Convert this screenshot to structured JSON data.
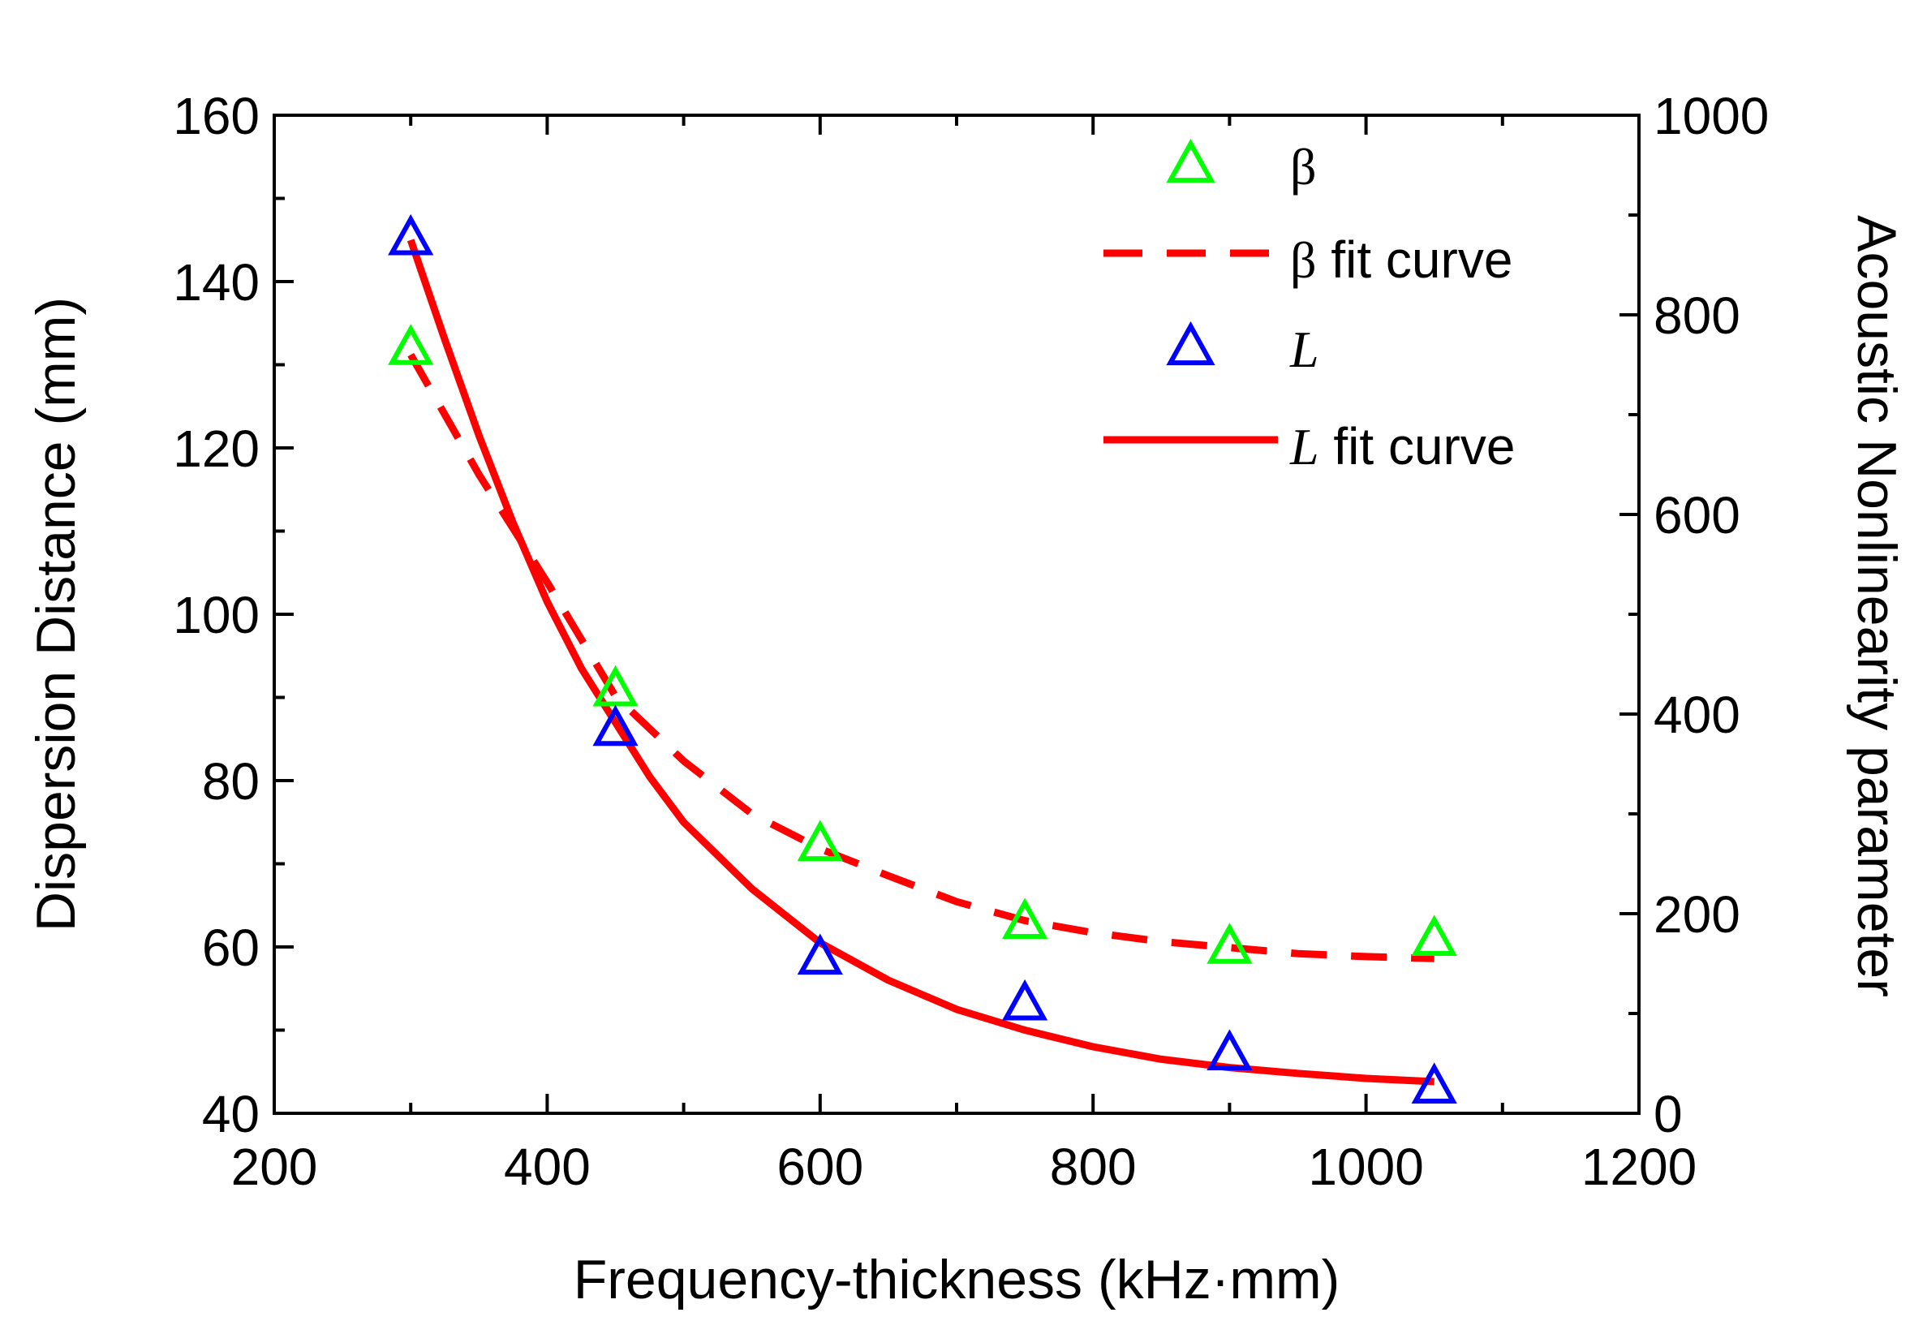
{
  "chart_data": {
    "type": "scatter",
    "title": "",
    "xlabel": "Frequency-thickness (kHz·mm)",
    "ylabel_left": "Dispersion Distance (mm)",
    "ylabel_right": "Acoustic Nonlinearity parameter",
    "xlim": [
      200,
      1200
    ],
    "ylim_left": [
      40,
      160
    ],
    "ylim_right": [
      0,
      1000
    ],
    "x_ticks": [
      200,
      400,
      600,
      800,
      1000,
      1200
    ],
    "y_left_ticks": [
      40,
      60,
      80,
      100,
      120,
      140,
      160
    ],
    "y_right_ticks": [
      0,
      200,
      400,
      600,
      800,
      1000
    ],
    "grid": false,
    "legend_position": "top-right",
    "series": [
      {
        "name": "β",
        "axis": "right",
        "style": "markers",
        "marker": "triangle-open",
        "color": "#00ff00",
        "x": [
          300,
          450,
          600,
          750,
          900,
          1050
        ],
        "y": [
          765,
          423,
          268,
          190,
          165,
          173
        ]
      },
      {
        "name": "β fit curve",
        "axis": "right",
        "style": "dashed-line",
        "color": "#ff0000",
        "x": [
          300,
          350,
          400,
          450,
          500,
          550,
          600,
          650,
          700,
          750,
          800,
          850,
          900,
          950,
          1000,
          1050
        ],
        "y": [
          760,
          640,
          532,
          418,
          353,
          300,
          265,
          238,
          212,
          193,
          181,
          172,
          166,
          160,
          157,
          155
        ]
      },
      {
        "name": "L",
        "axis": "left",
        "style": "markers",
        "marker": "triangle-open",
        "color": "#0000ff",
        "x": [
          300,
          450,
          600,
          750,
          900,
          1050
        ],
        "y": [
          145,
          86,
          58.5,
          53,
          47,
          43
        ]
      },
      {
        "name": "L fit curve",
        "axis": "left",
        "style": "solid-line",
        "color": "#ff0000",
        "x": [
          300,
          325,
          350,
          375,
          400,
          425,
          450,
          475,
          500,
          550,
          600,
          650,
          700,
          750,
          800,
          850,
          900,
          950,
          1000,
          1050
        ],
        "y": [
          145,
          133,
          121.5,
          111,
          101.5,
          93.5,
          87,
          80.5,
          75,
          67,
          60.5,
          56,
          52.5,
          50,
          48,
          46.5,
          45.5,
          44.8,
          44.2,
          43.8
        ]
      }
    ],
    "legend": [
      {
        "prefix": "β",
        "suffix": "",
        "italic": false
      },
      {
        "prefix": "β",
        "suffix": " fit curve",
        "italic": false
      },
      {
        "prefix": "L",
        "suffix": "",
        "italic": true
      },
      {
        "prefix": "L",
        "suffix": " fit curve",
        "italic": true
      }
    ]
  }
}
